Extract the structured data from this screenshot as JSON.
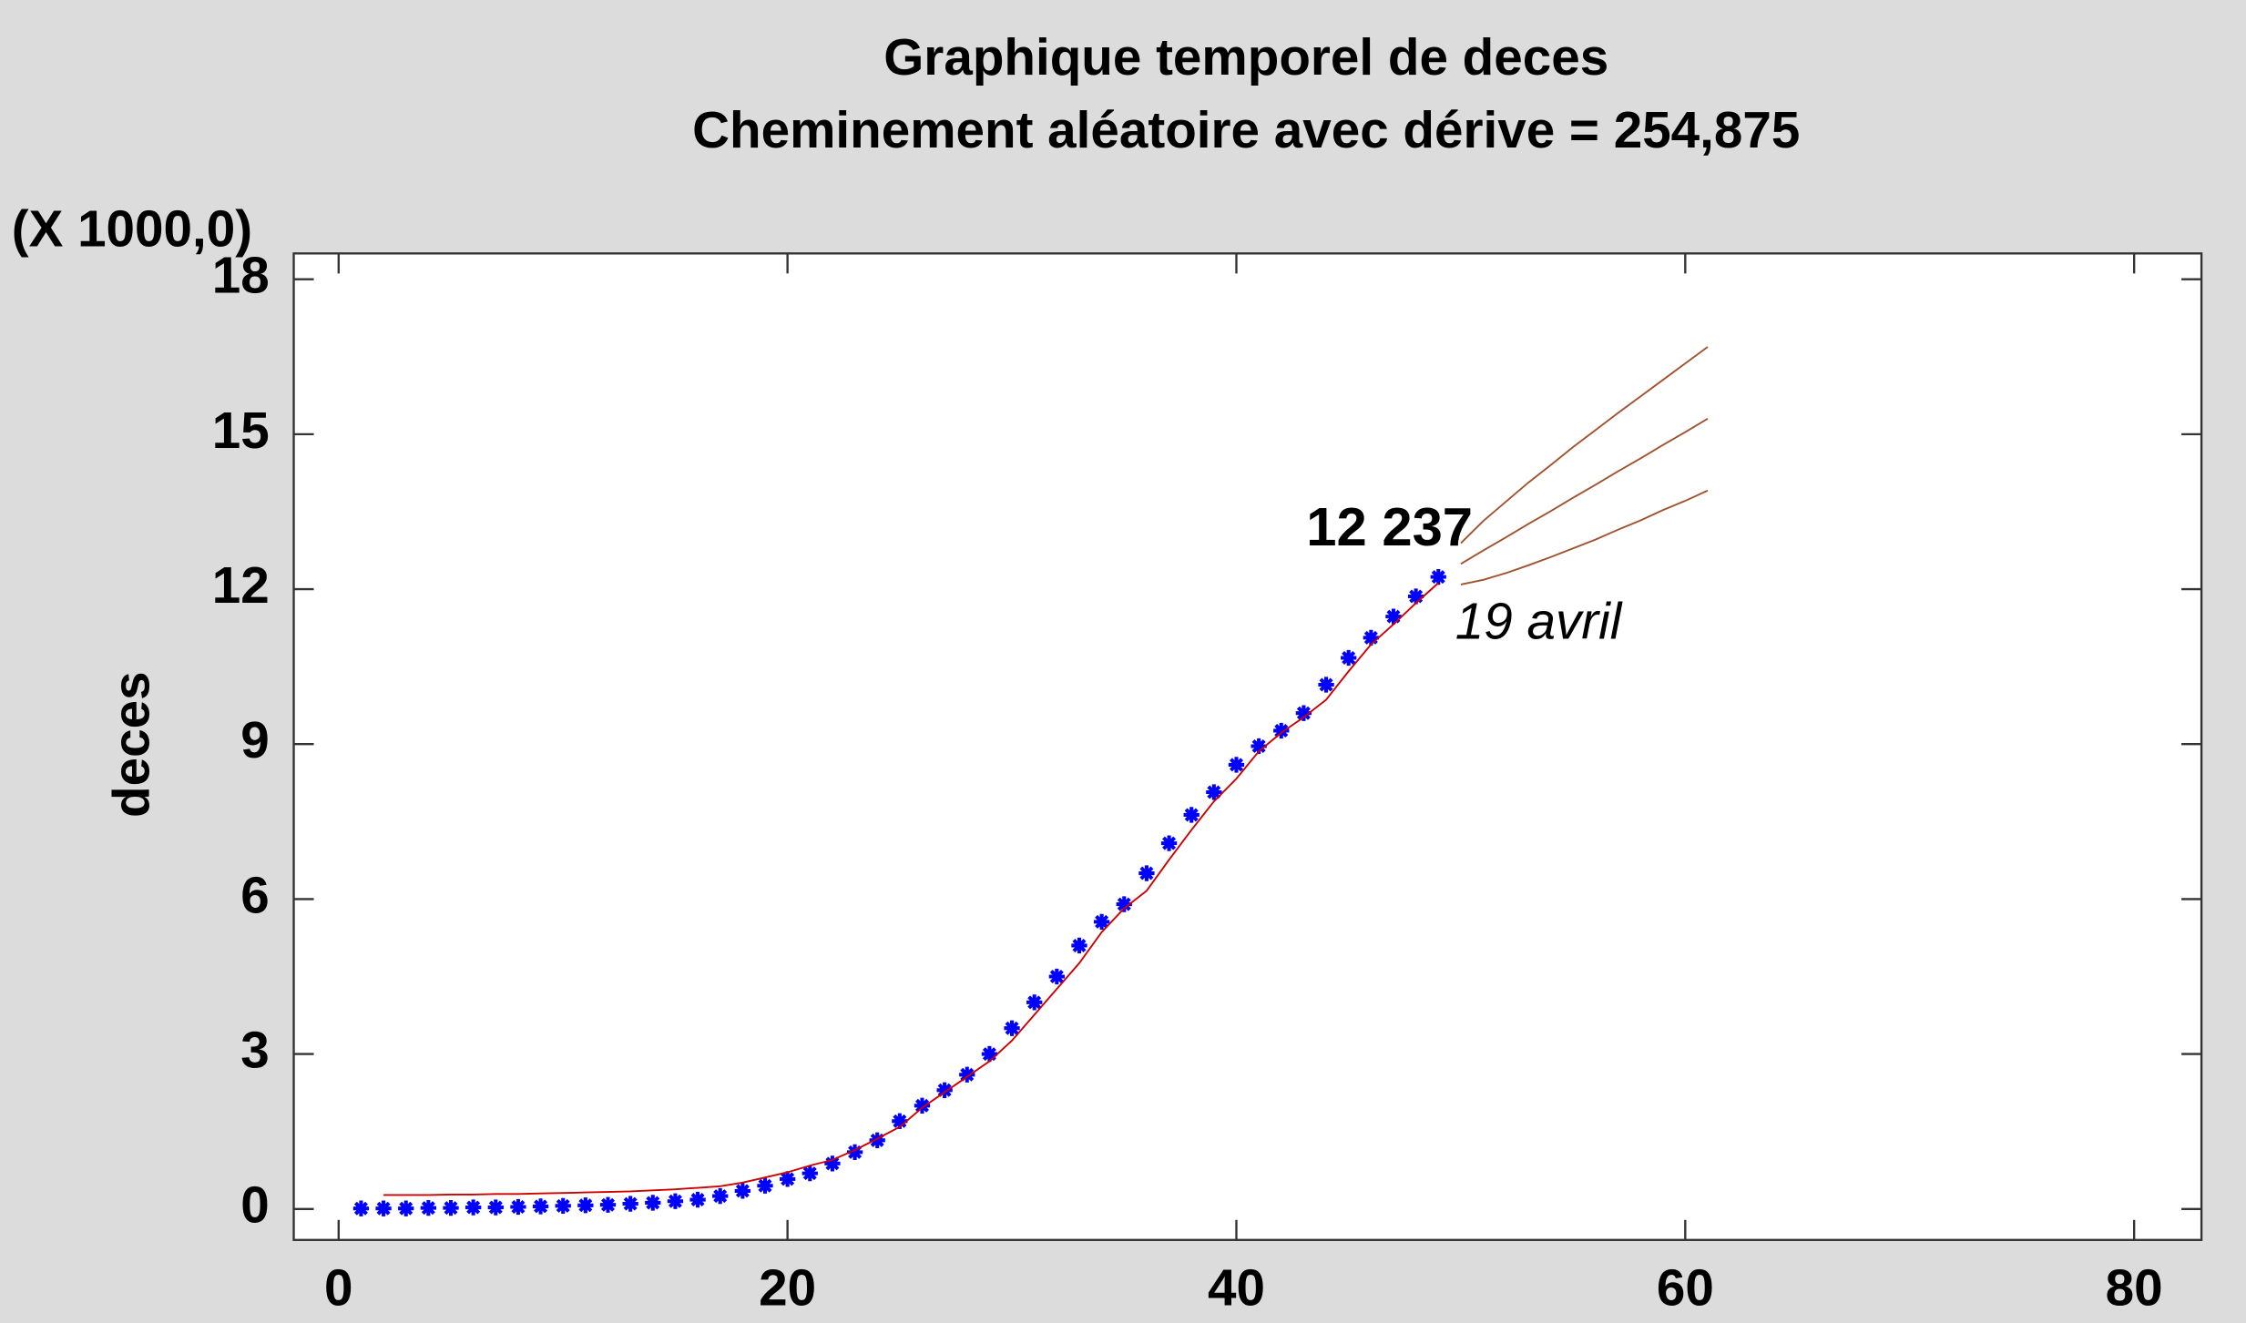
{
  "chart_data": {
    "type": "line",
    "title": "Graphique temporel de deces",
    "subtitle": "Cheminement aléatoire avec dérive = 254,875",
    "y_label": "deces",
    "y_multiplier": "(X 1000,0)",
    "annotations": [
      "12 237",
      "19 avril"
    ],
    "xlim": [
      -2,
      83
    ],
    "ylim": [
      -0.6,
      18.5
    ],
    "xticks": [
      0,
      20,
      40,
      60,
      80
    ],
    "yticks": [
      0,
      3,
      6,
      9,
      12,
      15,
      18
    ],
    "series": [
      {
        "style": "markers",
        "color": "#0000ff",
        "x": [
          1,
          2,
          3,
          4,
          5,
          6,
          7,
          8,
          9,
          10,
          11,
          12,
          13,
          14,
          15,
          16,
          17,
          18,
          19,
          20,
          21,
          22,
          23,
          24,
          25,
          26,
          27,
          28,
          29,
          30,
          31,
          32,
          33,
          34,
          35,
          36,
          37,
          38,
          39,
          40,
          41,
          42,
          43,
          44,
          45,
          46,
          47,
          48,
          49
        ],
        "values": [
          0.01,
          0.01,
          0.01,
          0.02,
          0.02,
          0.03,
          0.03,
          0.04,
          0.05,
          0.06,
          0.07,
          0.08,
          0.1,
          0.12,
          0.15,
          0.18,
          0.25,
          0.35,
          0.45,
          0.58,
          0.69,
          0.88,
          1.1,
          1.33,
          1.7,
          2.0,
          2.3,
          2.6,
          3.0,
          3.5,
          4.0,
          4.5,
          5.1,
          5.56,
          5.9,
          6.5,
          7.08,
          7.63,
          8.07,
          8.6,
          8.96,
          9.26,
          9.6,
          10.15,
          10.67,
          11.06,
          11.47,
          11.86,
          12.237
        ]
      },
      {
        "style": "line",
        "color": "#cc0000",
        "x": [
          2,
          3,
          4,
          5,
          6,
          7,
          8,
          9,
          10,
          11,
          12,
          13,
          14,
          15,
          16,
          17,
          18,
          19,
          20,
          21,
          22,
          23,
          24,
          25,
          26,
          27,
          28,
          29,
          30,
          31,
          32,
          33,
          34,
          35,
          36,
          37,
          38,
          39,
          40,
          41,
          42,
          43,
          44,
          45,
          46,
          47,
          48,
          49
        ],
        "values": [
          0.27,
          0.27,
          0.27,
          0.28,
          0.28,
          0.29,
          0.29,
          0.3,
          0.31,
          0.32,
          0.33,
          0.34,
          0.36,
          0.38,
          0.41,
          0.44,
          0.51,
          0.61,
          0.71,
          0.84,
          0.95,
          1.14,
          1.36,
          1.59,
          1.96,
          2.26,
          2.56,
          2.86,
          3.26,
          3.76,
          4.26,
          4.76,
          5.36,
          5.82,
          6.16,
          6.76,
          7.34,
          7.89,
          8.33,
          8.86,
          9.22,
          9.52,
          9.86,
          10.41,
          10.93,
          11.32,
          11.73,
          12.12
        ]
      },
      {
        "style": "line",
        "color": "#a0522d",
        "x": [
          50,
          51,
          52,
          53,
          54,
          55,
          56,
          57,
          58,
          59,
          60,
          61
        ],
        "values": [
          12.49,
          12.75,
          13.0,
          13.26,
          13.51,
          13.77,
          14.02,
          14.28,
          14.53,
          14.79,
          15.04,
          15.3
        ]
      },
      {
        "style": "line",
        "color": "#a0522d",
        "x": [
          50,
          51,
          52,
          53,
          54,
          55,
          56,
          57,
          58,
          59,
          60,
          61
        ],
        "values": [
          12.89,
          13.32,
          13.69,
          14.06,
          14.4,
          14.75,
          15.08,
          15.41,
          15.73,
          16.05,
          16.37,
          16.69
        ]
      },
      {
        "style": "line",
        "color": "#a0522d",
        "x": [
          50,
          51,
          52,
          53,
          54,
          55,
          56,
          57,
          58,
          59,
          60,
          61
        ],
        "values": [
          12.09,
          12.18,
          12.31,
          12.46,
          12.62,
          12.79,
          12.96,
          13.15,
          13.33,
          13.53,
          13.71,
          13.91
        ]
      }
    ]
  }
}
